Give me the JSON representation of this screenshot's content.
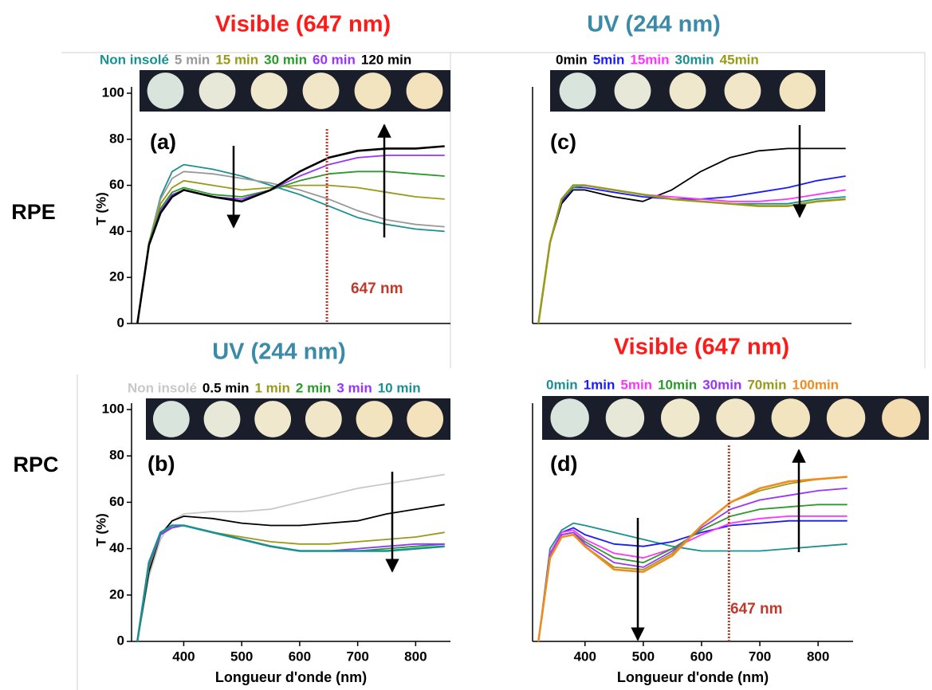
{
  "rows": [
    "RPE",
    "RPC"
  ],
  "chart_data": [
    {
      "type": "line",
      "title": "Visible (647 nm)",
      "title_color": "#ff1a1a",
      "panel_label": "(a)",
      "ylabel": "T (%)",
      "xlim": [
        310,
        860
      ],
      "ylim": [
        0,
        100
      ],
      "yticks": [
        0,
        20,
        40,
        60,
        80,
        100
      ],
      "marker": {
        "x": 647,
        "label": "647 nm",
        "color": "#c0392b"
      },
      "x": [
        320,
        340,
        360,
        380,
        400,
        450,
        500,
        550,
        600,
        650,
        700,
        750,
        800,
        850
      ],
      "series": [
        {
          "name": "Non insolé",
          "color": "#1a9090",
          "values": [
            0,
            35,
            55,
            66,
            69,
            67,
            64,
            60,
            56,
            51,
            46,
            43,
            41,
            40
          ]
        },
        {
          "name": "5 min",
          "color": "#999999",
          "values": [
            0,
            35,
            54,
            63,
            66,
            65,
            63,
            61,
            58,
            54,
            49,
            45,
            43,
            42
          ]
        },
        {
          "name": "15 min",
          "color": "#9a9a1a",
          "values": [
            0,
            35,
            52,
            59,
            62,
            60,
            58,
            59,
            60,
            60,
            59,
            57,
            55,
            54
          ]
        },
        {
          "name": "30 min",
          "color": "#2a9a2a",
          "values": [
            0,
            35,
            50,
            57,
            59,
            56,
            55,
            58,
            62,
            65,
            66,
            66,
            65,
            64
          ]
        },
        {
          "name": "60 min",
          "color": "#9933ff",
          "values": [
            0,
            34,
            49,
            56,
            58,
            55,
            54,
            58,
            64,
            69,
            72,
            73,
            73,
            73
          ]
        },
        {
          "name": "120 min",
          "color": "#000000",
          "values": [
            0,
            34,
            48,
            55,
            58,
            55,
            53,
            58,
            66,
            72,
            75,
            76,
            76,
            77
          ]
        }
      ]
    },
    {
      "type": "line",
      "title": "UV (244 nm)",
      "title_color": "#3a8aa8",
      "panel_label": "(c)",
      "xlim": [
        310,
        860
      ],
      "ylim": [
        0,
        100
      ],
      "x": [
        320,
        340,
        360,
        380,
        400,
        450,
        500,
        550,
        600,
        650,
        700,
        750,
        800,
        850
      ],
      "series": [
        {
          "name": "0min",
          "color": "#000000",
          "values": [
            0,
            35,
            52,
            58,
            58,
            55,
            53,
            58,
            66,
            72,
            75,
            76,
            76,
            76
          ]
        },
        {
          "name": "5min",
          "color": "#1a1aff",
          "values": [
            0,
            35,
            53,
            59,
            59,
            57,
            55,
            54,
            54,
            55,
            57,
            59,
            62,
            64
          ]
        },
        {
          "name": "15min",
          "color": "#ff33ff",
          "values": [
            0,
            35,
            54,
            59,
            60,
            58,
            56,
            55,
            54,
            53,
            53,
            54,
            56,
            58
          ]
        },
        {
          "name": "30min",
          "color": "#1a9090",
          "values": [
            0,
            35,
            54,
            59,
            60,
            58,
            56,
            54,
            53,
            52,
            52,
            52,
            54,
            55
          ]
        },
        {
          "name": "45min",
          "color": "#9a9a1a",
          "values": [
            0,
            35,
            54,
            60,
            60,
            58,
            56,
            54,
            53,
            52,
            51,
            51,
            53,
            54
          ]
        }
      ]
    },
    {
      "type": "line",
      "title": "UV (244 nm)",
      "title_color": "#3a8aa8",
      "panel_label": "(b)",
      "ylabel": "T (%)",
      "xlabel": "Longueur d'onde (nm)",
      "xlim": [
        310,
        860
      ],
      "ylim": [
        0,
        100
      ],
      "yticks": [
        0,
        20,
        40,
        60,
        80,
        100
      ],
      "xticks": [
        400,
        500,
        600,
        700,
        800
      ],
      "x": [
        320,
        340,
        360,
        380,
        400,
        450,
        500,
        550,
        600,
        650,
        700,
        750,
        800,
        850
      ],
      "series": [
        {
          "name": "Non insolé",
          "color": "#c8c8c8",
          "values": [
            0,
            28,
            44,
            52,
            55,
            56,
            56,
            57,
            60,
            63,
            66,
            68,
            70,
            72
          ]
        },
        {
          "name": "0.5 min",
          "color": "#000000",
          "values": [
            0,
            30,
            46,
            52,
            54,
            53,
            51,
            50,
            50,
            51,
            52,
            55,
            57,
            59
          ]
        },
        {
          "name": "1 min",
          "color": "#9a9a1a",
          "values": [
            0,
            32,
            46,
            50,
            50,
            47,
            45,
            43,
            42,
            42,
            43,
            44,
            45,
            47
          ]
        },
        {
          "name": "2 min",
          "color": "#2a9a2a",
          "values": [
            0,
            33,
            46,
            49,
            50,
            47,
            44,
            41,
            39,
            39,
            39,
            40,
            41,
            42
          ]
        },
        {
          "name": "3 min",
          "color": "#9933ff",
          "values": [
            0,
            33,
            46,
            49,
            50,
            47,
            44,
            41,
            39,
            39,
            40,
            41,
            42,
            42
          ]
        },
        {
          "name": "10 min",
          "color": "#1a9090",
          "values": [
            0,
            34,
            47,
            50,
            50,
            47,
            44,
            41,
            39,
            39,
            39,
            39,
            40,
            41
          ]
        }
      ]
    },
    {
      "type": "line",
      "title": "Visible (647 nm)",
      "title_color": "#ff1a1a",
      "panel_label": "(d)",
      "xlabel": "Longueur d'onde (nm)",
      "xlim": [
        310,
        860
      ],
      "ylim": [
        0,
        100
      ],
      "xticks": [
        400,
        500,
        600,
        700,
        800
      ],
      "marker": {
        "x": 647,
        "label": "647 nm",
        "color": "#c0392b"
      },
      "x": [
        320,
        340,
        360,
        380,
        400,
        450,
        500,
        550,
        600,
        650,
        700,
        750,
        800,
        850
      ],
      "series": [
        {
          "name": "0min",
          "color": "#1a9090",
          "values": [
            0,
            40,
            48,
            51,
            50,
            47,
            44,
            41,
            39,
            39,
            39,
            40,
            41,
            42
          ]
        },
        {
          "name": "1min",
          "color": "#1a1aff",
          "values": [
            0,
            38,
            47,
            49,
            46,
            42,
            41,
            43,
            47,
            50,
            51,
            52,
            52,
            52
          ]
        },
        {
          "name": "5min",
          "color": "#ff33ff",
          "values": [
            0,
            38,
            47,
            48,
            44,
            38,
            36,
            40,
            46,
            51,
            53,
            54,
            54,
            54
          ]
        },
        {
          "name": "10min",
          "color": "#2a9a2a",
          "values": [
            0,
            37,
            46,
            47,
            43,
            36,
            34,
            40,
            48,
            54,
            57,
            58,
            59,
            59
          ]
        },
        {
          "name": "30min",
          "color": "#9933ff",
          "values": [
            0,
            37,
            46,
            47,
            42,
            34,
            32,
            39,
            49,
            57,
            61,
            63,
            65,
            66
          ]
        },
        {
          "name": "70min",
          "color": "#9a9a1a",
          "values": [
            0,
            36,
            45,
            46,
            41,
            32,
            31,
            38,
            50,
            60,
            65,
            68,
            70,
            71
          ]
        },
        {
          "name": "100min",
          "color": "#f08c1e",
          "values": [
            0,
            36,
            45,
            46,
            41,
            31,
            30,
            37,
            50,
            60,
            66,
            69,
            70,
            71
          ]
        }
      ]
    }
  ]
}
